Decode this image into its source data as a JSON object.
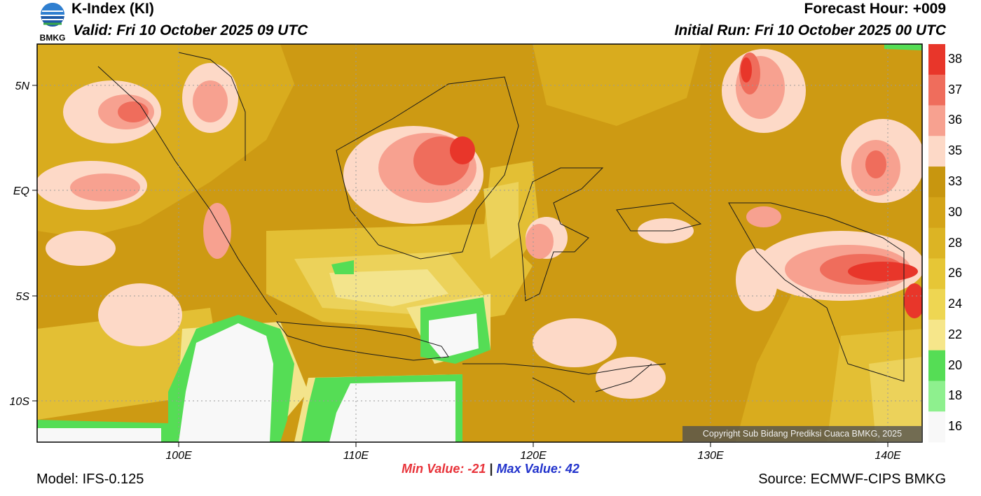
{
  "header": {
    "title": "K-Index (KI)",
    "valid": "Valid: Fri 10 October 2025 09 UTC",
    "forecast_hour": "Forecast Hour: +009",
    "initial_run": "Initial Run: Fri 10 October 2025 00 UTC"
  },
  "logo": {
    "text": "BMKG"
  },
  "map": {
    "lat_labels": [
      "5N",
      "EQ",
      "5S",
      "10S"
    ],
    "lat_values": [
      5,
      0,
      -5,
      -10
    ],
    "lon_labels": [
      "100E",
      "110E",
      "120E",
      "130E",
      "140E"
    ],
    "lon_values": [
      100,
      110,
      120,
      130,
      140
    ],
    "copyright": "Copyright Sub Bidang Prediksi Cuaca BMKG, 2025"
  },
  "colorbar": {
    "labels": [
      "38",
      "37",
      "36",
      "35",
      "33",
      "30",
      "28",
      "26",
      "24",
      "22",
      "20",
      "18",
      "16"
    ],
    "colors": [
      "#e8362a",
      "#ef6d5c",
      "#f7a190",
      "#fdd9c7",
      "#c8960f",
      "#d4a418",
      "#dcb424",
      "#e6c636",
      "#eed652",
      "#f6e68a",
      "#55dd55",
      "#8ef08e",
      "#f8f8f8"
    ]
  },
  "stats": {
    "min_label": "Min Value: -21",
    "separator": "|",
    "max_label": "Max Value:  42"
  },
  "footer": {
    "model": "Model: IFS-0.125",
    "source": "Source: ECMWF-CIPS BMKG"
  }
}
